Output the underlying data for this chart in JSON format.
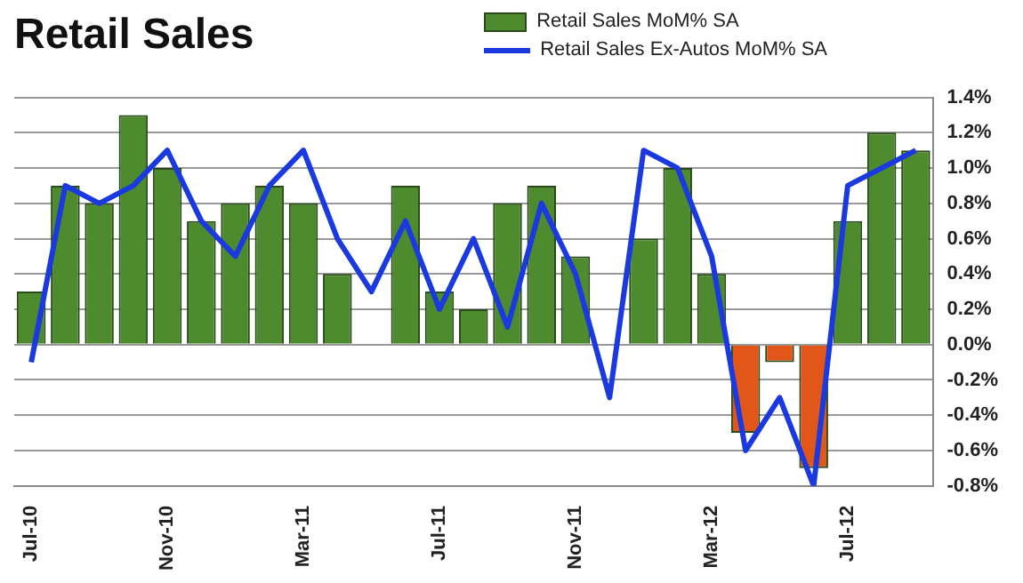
{
  "chart_data": {
    "type": "bar",
    "title": "Retail Sales",
    "categories": [
      "Jul-10",
      null,
      null,
      null,
      "Nov-10",
      null,
      null,
      null,
      "Mar-11",
      null,
      null,
      null,
      "Jul-11",
      null,
      null,
      null,
      "Nov-11",
      null,
      null,
      null,
      "Mar-12",
      null,
      null,
      null,
      "Jul-12",
      null,
      null
    ],
    "series": [
      {
        "name": "Retail Sales MoM% SA",
        "color": "#4e8a2e",
        "colors": [
          "#4e8a2e",
          "#4e8a2e",
          "#4e8a2e",
          "#4e8a2e",
          "#4e8a2e",
          "#4e8a2e",
          "#4e8a2e",
          "#4e8a2e",
          "#4e8a2e",
          "#4e8a2e",
          "#4e8a2e",
          "#4e8a2e",
          "#4e8a2e",
          "#4e8a2e",
          "#4e8a2e",
          "#4e8a2e",
          "#4e8a2e",
          "#4e8a2e",
          "#4e8a2e",
          "#4e8a2e",
          "#4e8a2e",
          "#e2561a",
          "#e2561a",
          "#e2561a",
          "#4e8a2e",
          "#4e8a2e",
          "#4e8a2e"
        ],
        "values": [
          0.3,
          0.9,
          0.8,
          1.3,
          1.0,
          0.7,
          0.8,
          0.9,
          0.8,
          0.4,
          0.0,
          0.9,
          0.3,
          0.2,
          0.8,
          0.9,
          0.5,
          0.0,
          0.6,
          1.0,
          0.4,
          -0.5,
          -0.1,
          -0.7,
          0.7,
          1.2,
          1.1
        ]
      },
      {
        "name": "Retail Sales Ex-Autos MoM% SA",
        "type": "line",
        "color": "#1a3ae0",
        "values": [
          -0.1,
          0.9,
          0.8,
          0.9,
          1.1,
          0.7,
          0.5,
          0.9,
          1.1,
          0.6,
          0.3,
          0.7,
          0.2,
          0.6,
          0.1,
          0.8,
          0.4,
          -0.3,
          1.1,
          1.0,
          0.5,
          -0.6,
          -0.3,
          -0.8,
          0.9,
          1.0,
          1.1
        ]
      }
    ],
    "ylim": [
      -0.8,
      1.4
    ],
    "yticks": [
      {
        "value": -0.8,
        "label": "-0.8%"
      },
      {
        "value": -0.6,
        "label": "-0.6%"
      },
      {
        "value": -0.4,
        "label": "-0.4%"
      },
      {
        "value": -0.2,
        "label": "-0.2%"
      },
      {
        "value": 0.0,
        "label": "0.0%"
      },
      {
        "value": 0.2,
        "label": "0.2%"
      },
      {
        "value": 0.4,
        "label": "0.4%"
      },
      {
        "value": 0.6,
        "label": "0.6%"
      },
      {
        "value": 0.8,
        "label": "0.8%"
      },
      {
        "value": 1.0,
        "label": "1.0%"
      },
      {
        "value": 1.2,
        "label": "1.2%"
      },
      {
        "value": 1.4,
        "label": "1.4%"
      }
    ],
    "grid": "y",
    "legend": "top right",
    "marker": "none",
    "line_style": "solid"
  }
}
